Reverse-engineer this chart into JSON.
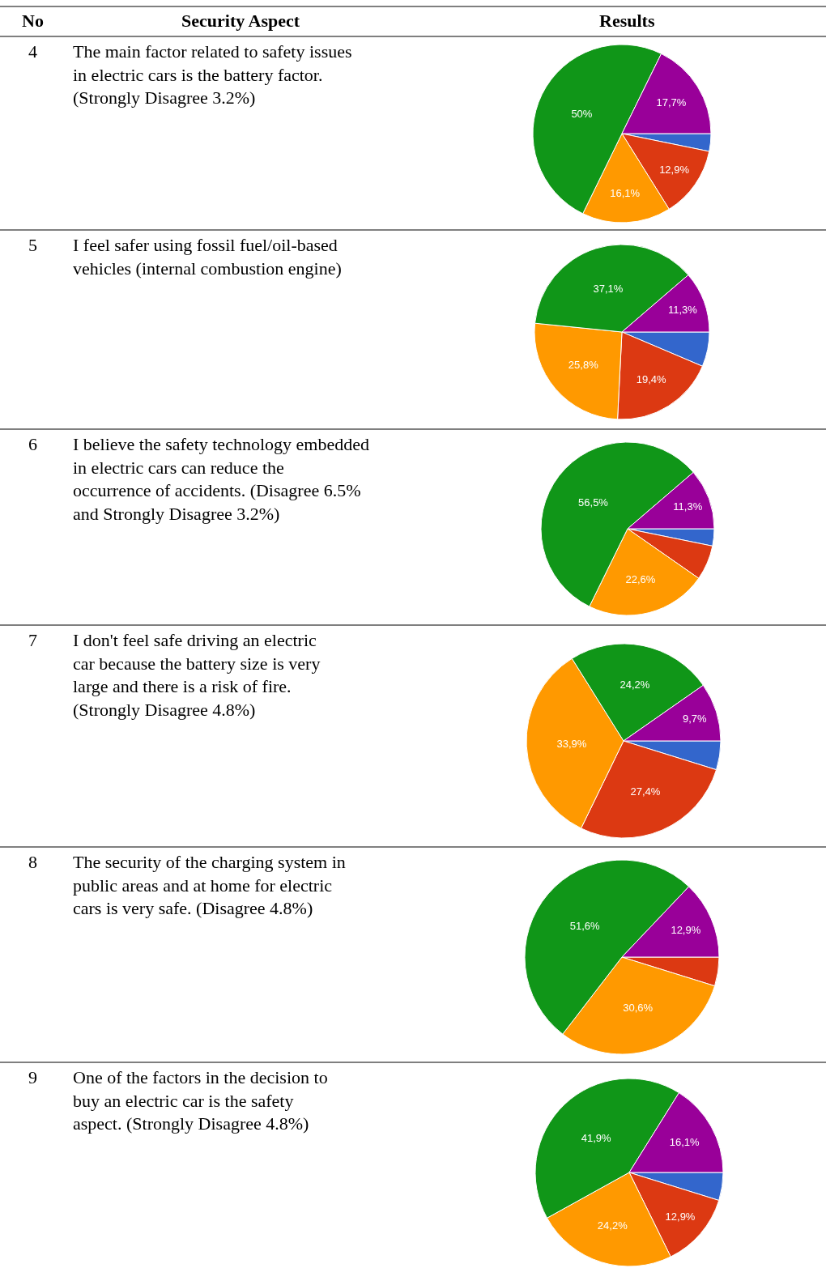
{
  "chart_data": [
    {
      "type": "pie",
      "title": "The main factor related to safety issues in electric cars is the battery factor. (Strongly Disagree 3.2%)",
      "annotations": [
        "No",
        "Security Aspect",
        "Results",
        "4"
      ],
      "categories": [
        null,
        null,
        null,
        null,
        null
      ],
      "values": [
        3.2,
        12.9,
        16.1,
        50,
        17.7
      ],
      "colors": [
        "#3366cc",
        "#dc3912",
        "#ff9900",
        "#109618",
        "#990099"
      ],
      "value_labels": [
        null,
        "12,9%",
        "16,1%",
        "50%",
        "17,7%"
      ]
    },
    {
      "type": "pie",
      "title": "I feel safer using fossil fuel/oil-based vehicles (internal combustion engine)",
      "annotations": [
        "5"
      ],
      "categories": [
        null,
        null,
        null,
        null,
        null
      ],
      "values": [
        6.4,
        19.4,
        25.8,
        37.1,
        11.3
      ],
      "colors": [
        "#3366cc",
        "#dc3912",
        "#ff9900",
        "#109618",
        "#990099"
      ],
      "value_labels": [
        null,
        "19,4%",
        "25,8%",
        "37,1%",
        "11,3%"
      ]
    },
    {
      "type": "pie",
      "title": "I believe the safety technology embedded in electric cars can reduce the occurrence of accidents. (Disagree 6.5% and Strongly Disagree 3.2%)",
      "annotations": [
        "6"
      ],
      "categories": [
        null,
        null,
        null,
        null,
        null
      ],
      "values": [
        3.2,
        6.5,
        22.6,
        56.5,
        11.3
      ],
      "colors": [
        "#3366cc",
        "#dc3912",
        "#ff9900",
        "#109618",
        "#990099"
      ],
      "value_labels": [
        null,
        null,
        "22,6%",
        "56,5%",
        "11,3%"
      ]
    },
    {
      "type": "pie",
      "title": "I don't feel safe driving an electric car because the battery size is very large and there is a risk of fire. (Strongly Disagree 4.8%)",
      "annotations": [
        "7"
      ],
      "categories": [
        null,
        null,
        null,
        null,
        null
      ],
      "values": [
        4.8,
        27.4,
        33.9,
        24.2,
        9.7
      ],
      "colors": [
        "#3366cc",
        "#dc3912",
        "#ff9900",
        "#109618",
        "#990099"
      ],
      "value_labels": [
        null,
        "27,4%",
        "33,9%",
        "24,2%",
        "9,7%"
      ]
    },
    {
      "type": "pie",
      "title": "The security of the charging system in public areas and at home for electric cars is very safe. (Disagree 4.8%)",
      "annotations": [
        "8"
      ],
      "categories": [
        null,
        null,
        null,
        null
      ],
      "values": [
        4.8,
        30.6,
        51.6,
        12.9
      ],
      "colors": [
        "#dc3912",
        "#ff9900",
        "#109618",
        "#990099"
      ],
      "value_labels": [
        null,
        "30,6%",
        "51,6%",
        "12,9%"
      ]
    },
    {
      "type": "pie",
      "title": "One of the factors in the decision to buy an electric car is the safety aspect. (Strongly Disagree 4.8%)",
      "annotations": [
        "9"
      ],
      "categories": [
        null,
        null,
        null,
        null,
        null
      ],
      "values": [
        4.8,
        12.9,
        24.2,
        41.9,
        16.1
      ],
      "colors": [
        "#3366cc",
        "#dc3912",
        "#ff9900",
        "#109618",
        "#990099"
      ],
      "value_labels": [
        null,
        "12,9%",
        "24,2%",
        "41,9%",
        "16,1%"
      ]
    }
  ]
}
